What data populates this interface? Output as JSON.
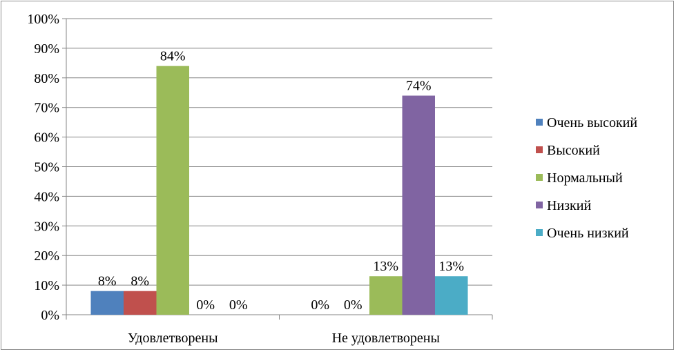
{
  "chart_data": {
    "type": "bar",
    "title": "",
    "xlabel": "",
    "ylabel": "",
    "ylim": [
      0,
      100
    ],
    "yticks": [
      0,
      10,
      20,
      30,
      40,
      50,
      60,
      70,
      80,
      90,
      100
    ],
    "ytick_format": "{v}%",
    "grid": true,
    "legend_position": "right",
    "categories": [
      "Удовлетворены",
      "Не удовлетворены"
    ],
    "series": [
      {
        "name": "Очень высокий",
        "color": "#4f81bd",
        "values": [
          8,
          0
        ],
        "labels": [
          "8%",
          "0%"
        ]
      },
      {
        "name": "Высокий",
        "color": "#c0504d",
        "values": [
          8,
          0
        ],
        "labels": [
          "8%",
          "0%"
        ]
      },
      {
        "name": "Нормальный",
        "color": "#9bbb59",
        "values": [
          84,
          13
        ],
        "labels": [
          "84%",
          "13%"
        ]
      },
      {
        "name": "Низкий",
        "color": "#8064a2",
        "values": [
          0,
          74
        ],
        "labels": [
          "0%",
          "74%"
        ]
      },
      {
        "name": "Очень низкий",
        "color": "#4bacc6",
        "values": [
          0,
          13
        ],
        "labels": [
          "0%",
          "13%"
        ]
      }
    ]
  }
}
